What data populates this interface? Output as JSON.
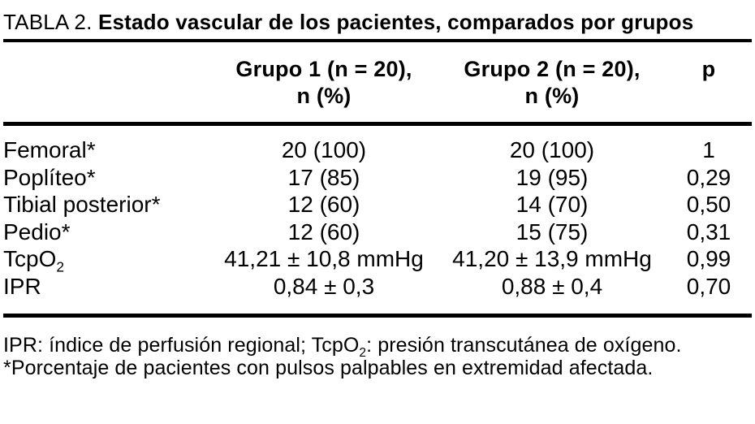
{
  "title": {
    "label": "TABLA 2. ",
    "caption": "Estado vascular de los pacientes, comparados por grupos"
  },
  "table": {
    "header": {
      "col_label": "",
      "col_grupo1_line1": "Grupo 1 (n = 20),",
      "col_grupo1_line2": "n (%)",
      "col_grupo2_line1": "Grupo 2 (n = 20),",
      "col_grupo2_line2": "n (%)",
      "col_p": "p"
    },
    "rows": [
      {
        "label": "Femoral*",
        "grupo1": "20 (100)",
        "grupo2": "20 (100)",
        "p": "1"
      },
      {
        "label": "Poplíteo*",
        "grupo1": "17 (85)",
        "grupo2": "19 (95)",
        "p": "0,29"
      },
      {
        "label": "Tibial posterior*",
        "grupo1": "12 (60)",
        "grupo2": "14 (70)",
        "p": "0,50"
      },
      {
        "label": "Pedio*",
        "grupo1": "12 (60)",
        "grupo2": "15 (75)",
        "p": "0,31"
      },
      {
        "label": "TcpO",
        "label_sub": "2",
        "grupo1": "41,21 ± 10,8 mmHg",
        "grupo2": "41,20 ± 13,9 mmHg",
        "p": "0,99"
      },
      {
        "label": "IPR",
        "grupo1": "0,84 ± 0,3",
        "grupo2": "0,88 ± 0,4",
        "p": "0,70"
      }
    ]
  },
  "footnotes": {
    "line1_pre": "IPR: índice de perfusión regional; TcpO",
    "line1_sub": "2",
    "line1_post": ": presión transcutánea de oxígeno.",
    "line2": "*Porcentaje de pacientes con pulsos palpables en extremidad afectada."
  },
  "colors": {
    "text": "#000000",
    "background": "#ffffff",
    "rule": "#000000"
  }
}
